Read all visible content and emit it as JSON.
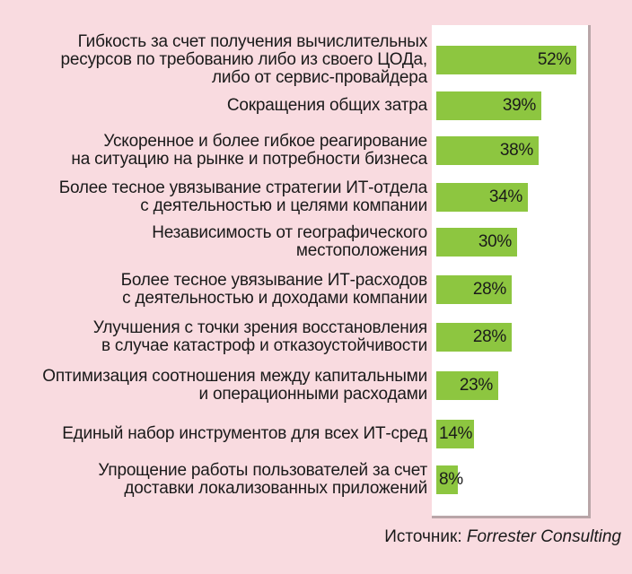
{
  "chart_data": {
    "type": "bar",
    "orientation": "horizontal",
    "categories": [
      "Гибкость за счет получения вычислительных\nресурсов по требованию либо из своего ЦОДа,\nлибо от сервис-провайдера",
      "Сокращения общих затра",
      "Ускоренное и более гибкое реагирование\nна ситуацию на рынке и потребности бизнеса",
      "Более тесное увязывание стратегии ИТ-отдела\nс деятельностью и целями компании",
      "Независимость от географического\nместоположения",
      "Более тесное увязывание ИТ-расходов\nс деятельностью и доходами компании",
      "Улучшения с точки зрения восстановления\nв случае катастроф и отказоустойчивости",
      "Оптимизация соотношения между капитальными\nи операционными расходами",
      "Единый набор инструментов для всех ИТ-сред",
      "Упрощение работы пользователей за счет\nдоставки локализованных приложений"
    ],
    "values": [
      52,
      39,
      38,
      34,
      30,
      28,
      28,
      23,
      14,
      8
    ],
    "value_labels": [
      "52%",
      "39%",
      "38%",
      "34%",
      "30%",
      "28%",
      "28%",
      "23%",
      "14%",
      "8%"
    ],
    "xlim": [
      0,
      60
    ],
    "grid": false,
    "legend": "none",
    "bar_color": "#8dc640"
  },
  "source": {
    "prefix": "Источник: ",
    "name": "Forrester Consulting"
  },
  "colors": {
    "background": "#f9dbe0",
    "panel": "#ffffff",
    "bar": "#8dc640",
    "text": "#1a1a1a"
  }
}
